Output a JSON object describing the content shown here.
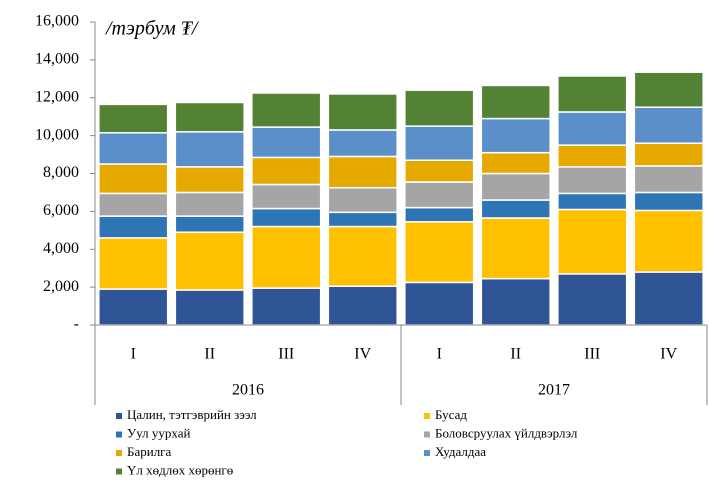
{
  "chart_data": {
    "type": "stacked_bar",
    "annotation": "/тэрбум ₮/",
    "categories": [
      "I",
      "II",
      "III",
      "IV",
      "I",
      "II",
      "III",
      "IV"
    ],
    "groups": [
      {
        "label": "2016",
        "size": 4
      },
      {
        "label": "2017",
        "size": 4
      }
    ],
    "series": [
      {
        "name": "Цалин, тэтгэврийн зээл",
        "color": "#2f5597",
        "values": [
          1900,
          1850,
          1950,
          2050,
          2250,
          2450,
          2700,
          2800
        ]
      },
      {
        "name": "Бусад",
        "color": "#ffc000",
        "values": [
          2700,
          3050,
          3250,
          3150,
          3200,
          3200,
          3400,
          3250
        ]
      },
      {
        "name": "Уул уурхай",
        "color": "#2e75b6",
        "values": [
          1150,
          850,
          950,
          750,
          750,
          950,
          850,
          950
        ]
      },
      {
        "name": "Боловсруулах үйлдвэрлэл",
        "color": "#a5a5a5",
        "values": [
          1200,
          1250,
          1270,
          1300,
          1350,
          1400,
          1400,
          1400
        ]
      },
      {
        "name": "Барилга",
        "color": "#e5a900",
        "values": [
          1550,
          1350,
          1430,
          1650,
          1150,
          1100,
          1150,
          1200
        ]
      },
      {
        "name": "Худалдаа",
        "color": "#5b8fc9",
        "values": [
          1650,
          1850,
          1600,
          1400,
          1800,
          1800,
          1750,
          1900
        ]
      },
      {
        "name": "Үл хөдлөх хөрөнгө",
        "color": "#548235",
        "values": [
          1500,
          1550,
          1800,
          1900,
          1900,
          1750,
          1900,
          1850
        ]
      }
    ],
    "ylim": [
      0,
      16000
    ],
    "yticks": [
      {
        "value": 0,
        "label": "-"
      },
      {
        "value": 2000,
        "label": "2,000"
      },
      {
        "value": 4000,
        "label": "4,000"
      },
      {
        "value": 6000,
        "label": "6,000"
      },
      {
        "value": 8000,
        "label": "8,000"
      },
      {
        "value": 10000,
        "label": "10,000"
      },
      {
        "value": 12000,
        "label": "12,000"
      },
      {
        "value": 14000,
        "label": "14,000"
      },
      {
        "value": 16000,
        "label": "16,000"
      }
    ]
  }
}
